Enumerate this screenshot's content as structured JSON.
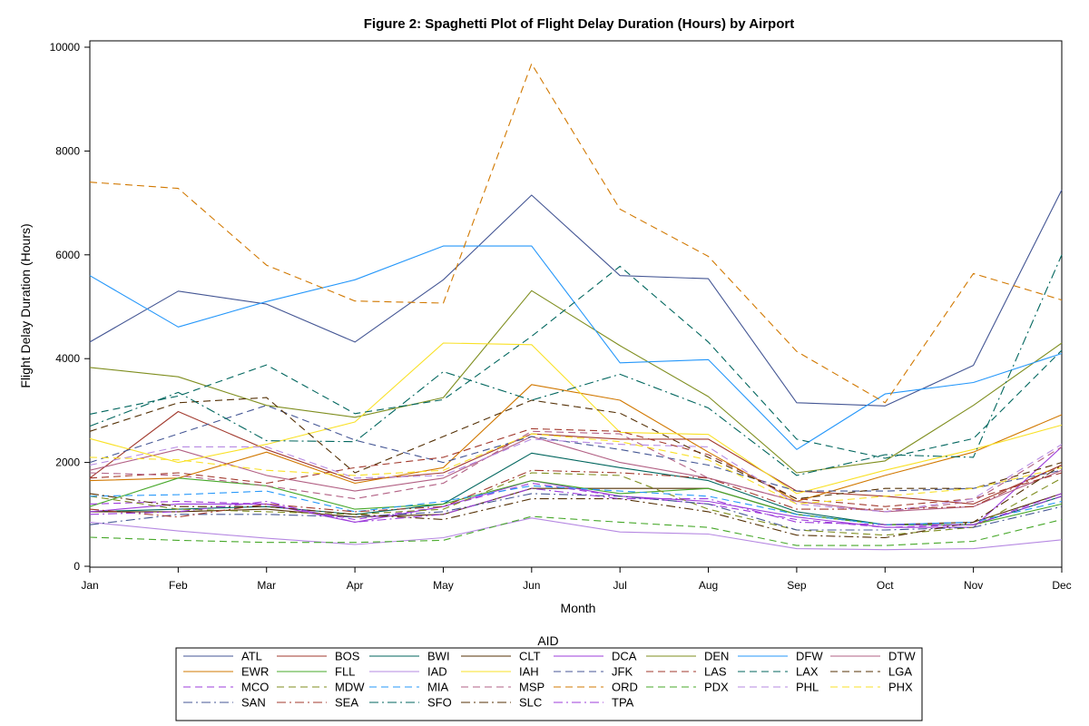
{
  "chart_data": {
    "type": "line",
    "title": "Figure 2: Spaghetti Plot of Flight Delay Duration (Hours) by Airport",
    "xlabel": "Month",
    "ylabel": "Flight Delay Duration (Hours)",
    "x": [
      "Jan",
      "Feb",
      "Mar",
      "Apr",
      "May",
      "Jun",
      "Jul",
      "Aug",
      "Sep",
      "Oct",
      "Nov",
      "Dec"
    ],
    "ylim": [
      0,
      10000
    ],
    "yticks": [
      0,
      2000,
      4000,
      6000,
      8000,
      10000
    ],
    "grid": false,
    "legend": {
      "title": "AID",
      "placement": "bottom"
    },
    "series": [
      {
        "name": "ATL",
        "color": "#445694",
        "dash": "solid",
        "values": [
          4320,
          5300,
          5050,
          4320,
          5520,
          7150,
          5600,
          5540,
          3150,
          3090,
          3870,
          7250
        ]
      },
      {
        "name": "BOS",
        "color": "#A23A2E",
        "dash": "solid",
        "values": [
          1700,
          2980,
          2250,
          1650,
          1800,
          2550,
          2450,
          2450,
          1450,
          1350,
          1200,
          1950
        ]
      },
      {
        "name": "BWI",
        "color": "#01665E",
        "dash": "solid",
        "values": [
          1050,
          1100,
          1150,
          1000,
          1200,
          2180,
          1900,
          1650,
          1050,
          800,
          800,
          1350
        ]
      },
      {
        "name": "CLT",
        "color": "#543005",
        "dash": "solid",
        "values": [
          1050,
          1050,
          1100,
          950,
          1000,
          1500,
          1500,
          1500,
          1000,
          800,
          850,
          1400
        ]
      },
      {
        "name": "DCA",
        "color": "#9D3CDB",
        "dash": "solid",
        "values": [
          1050,
          1200,
          1200,
          850,
          1150,
          1650,
          1350,
          1250,
          950,
          750,
          750,
          2300
        ]
      },
      {
        "name": "DEN",
        "color": "#7F8E1F",
        "dash": "solid",
        "values": [
          3830,
          3650,
          3100,
          2870,
          3250,
          5310,
          4250,
          3270,
          1800,
          2030,
          3100,
          4300
        ]
      },
      {
        "name": "DFW",
        "color": "#2597FA",
        "dash": "solid",
        "values": [
          5600,
          4610,
          5100,
          5520,
          6170,
          6170,
          3920,
          3980,
          2250,
          3320,
          3540,
          4100
        ]
      },
      {
        "name": "DTW",
        "color": "#B26084",
        "dash": "solid",
        "values": [
          1850,
          2250,
          1750,
          1450,
          1700,
          2500,
          2000,
          1700,
          1250,
          1050,
          1150,
          1850
        ]
      },
      {
        "name": "EWR",
        "color": "#D17800",
        "dash": "solid",
        "values": [
          1650,
          1700,
          2200,
          1600,
          1900,
          3500,
          3200,
          2200,
          1250,
          1750,
          2200,
          2920
        ]
      },
      {
        "name": "FLL",
        "color": "#47A82A",
        "dash": "solid",
        "values": [
          1150,
          1700,
          1550,
          1100,
          1200,
          1650,
          1400,
          1500,
          1000,
          800,
          800,
          1200
        ]
      },
      {
        "name": "IAD",
        "color": "#B689E2",
        "dash": "solid",
        "values": [
          850,
          680,
          540,
          420,
          550,
          930,
          660,
          620,
          340,
          320,
          340,
          510
        ]
      },
      {
        "name": "IAH",
        "color": "#F9E127",
        "dash": "solid",
        "values": [
          2460,
          2000,
          2350,
          2780,
          4300,
          4270,
          2580,
          2540,
          1400,
          1850,
          2250,
          2720
        ]
      },
      {
        "name": "JFK",
        "color": "#445694",
        "dash": "dashed",
        "values": [
          2000,
          2550,
          3100,
          2430,
          2000,
          2500,
          2250,
          1950,
          1450,
          1450,
          1500,
          1850
        ]
      },
      {
        "name": "LAS",
        "color": "#A23A2E",
        "dash": "dashed",
        "values": [
          1700,
          1800,
          1600,
          1900,
          2100,
          2650,
          2600,
          2150,
          1300,
          1150,
          1300,
          1800
        ]
      },
      {
        "name": "LAX",
        "color": "#01665E",
        "dash": "dashed",
        "values": [
          2930,
          3280,
          3880,
          2940,
          3210,
          4430,
          5780,
          4320,
          2450,
          2080,
          2460,
          4160
        ]
      },
      {
        "name": "LGA",
        "color": "#543005",
        "dash": "dashed",
        "values": [
          2600,
          3150,
          3250,
          1800,
          2500,
          3200,
          2950,
          2100,
          1300,
          1500,
          1500,
          2000
        ]
      },
      {
        "name": "MCO",
        "color": "#9D3CDB",
        "dash": "dashed",
        "values": [
          1200,
          1250,
          1200,
          900,
          1150,
          1600,
          1350,
          1200,
          900,
          750,
          800,
          1400
        ]
      },
      {
        "name": "MDW",
        "color": "#7F8E1F",
        "dash": "dashed",
        "values": [
          1350,
          1100,
          1050,
          1000,
          1100,
          1800,
          1750,
          1100,
          700,
          600,
          750,
          1700
        ]
      },
      {
        "name": "MIA",
        "color": "#2597FA",
        "dash": "dashed",
        "values": [
          1350,
          1380,
          1450,
          1050,
          1250,
          1550,
          1450,
          1350,
          1000,
          800,
          850,
          1250
        ]
      },
      {
        "name": "MSP",
        "color": "#B26084",
        "dash": "dashed",
        "values": [
          1800,
          1750,
          1550,
          1300,
          1600,
          2600,
          2550,
          1700,
          1250,
          1050,
          1250,
          2300
        ]
      },
      {
        "name": "ORD",
        "color": "#D17800",
        "dash": "dashed",
        "values": [
          7400,
          7280,
          5800,
          5110,
          5070,
          9680,
          6880,
          5970,
          4140,
          3150,
          5640,
          5130
        ]
      },
      {
        "name": "PDX",
        "color": "#47A82A",
        "dash": "dashed",
        "values": [
          560,
          500,
          460,
          460,
          500,
          960,
          850,
          750,
          400,
          400,
          480,
          900
        ]
      },
      {
        "name": "PHL",
        "color": "#B689E2",
        "dash": "dashed",
        "values": [
          1950,
          2300,
          2300,
          1700,
          1750,
          2450,
          2350,
          2300,
          1200,
          1050,
          1300,
          2350
        ]
      },
      {
        "name": "PHX",
        "color": "#F9E127",
        "dash": "dashed",
        "values": [
          2100,
          2050,
          1850,
          1750,
          1850,
          2550,
          2400,
          2050,
          1200,
          1350,
          1500,
          1900
        ]
      },
      {
        "name": "SAN",
        "color": "#445694",
        "dash": "dashdot",
        "values": [
          800,
          1000,
          1000,
          950,
          1050,
          1400,
          1350,
          1200,
          700,
          700,
          750,
          1150
        ]
      },
      {
        "name": "SEA",
        "color": "#A23A2E",
        "dash": "dashdot",
        "values": [
          1100,
          950,
          1200,
          1050,
          1150,
          1850,
          1800,
          1700,
          1100,
          1100,
          1150,
          1950
        ]
      },
      {
        "name": "SFO",
        "color": "#01665E",
        "dash": "dashdot",
        "values": [
          2700,
          3350,
          2420,
          2400,
          3750,
          3200,
          3700,
          3050,
          1750,
          2150,
          2100,
          6000
        ]
      },
      {
        "name": "SLC",
        "color": "#543005",
        "dash": "dashdot",
        "values": [
          1400,
          1150,
          1150,
          1000,
          900,
          1300,
          1300,
          1050,
          600,
          550,
          850,
          1950
        ]
      },
      {
        "name": "TPA",
        "color": "#9D3CDB",
        "dash": "dashdot",
        "values": [
          1000,
          1050,
          1250,
          850,
          1000,
          1500,
          1300,
          1300,
          850,
          800,
          800,
          1350
        ]
      }
    ]
  }
}
